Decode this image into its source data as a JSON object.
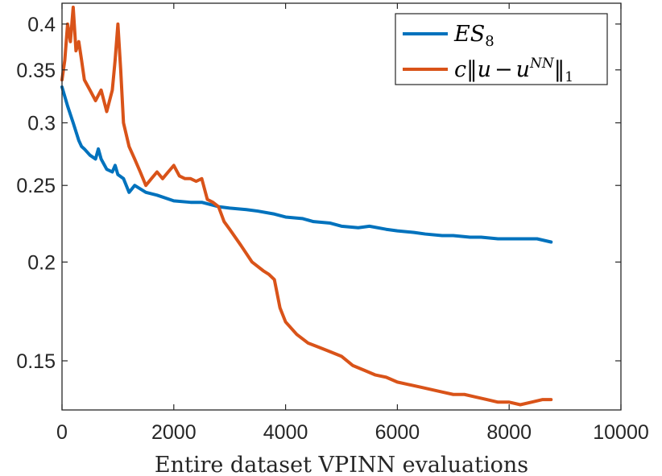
{
  "chart_data": {
    "type": "line",
    "title": "",
    "xlabel": "Entire dataset VPINN evaluations",
    "ylabel": "",
    "xlim": [
      0,
      10000
    ],
    "ylim": [
      0.13,
      0.425
    ],
    "yscale": "log",
    "grid": false,
    "legend_position": "top-right",
    "xticks": [
      0,
      2000,
      4000,
      6000,
      8000,
      10000
    ],
    "xtick_labels": [
      "0",
      "2000",
      "4000",
      "6000",
      "8000",
      "10000"
    ],
    "yticks": [
      0.15,
      0.2,
      0.25,
      0.3,
      0.35,
      0.4
    ],
    "ytick_labels": [
      "0.15",
      "0.2",
      "0.25",
      "0.3",
      "0.35",
      "0.4"
    ],
    "series": [
      {
        "name": "ES8",
        "legend_main": "ES",
        "legend_sub": "8",
        "color": "#0072BD",
        "x": [
          0,
          100,
          200,
          300,
          350,
          400,
          500,
          600,
          650,
          700,
          800,
          900,
          950,
          1000,
          1100,
          1200,
          1300,
          1500,
          1700,
          2000,
          2300,
          2500,
          2800,
          3000,
          3300,
          3500,
          3800,
          4000,
          4300,
          4500,
          4800,
          5000,
          5300,
          5500,
          5800,
          6000,
          6300,
          6500,
          6800,
          7000,
          7300,
          7500,
          7800,
          8000,
          8300,
          8500,
          8750
        ],
        "y": [
          0.333,
          0.315,
          0.3,
          0.285,
          0.28,
          0.278,
          0.273,
          0.27,
          0.278,
          0.27,
          0.262,
          0.26,
          0.265,
          0.258,
          0.255,
          0.245,
          0.25,
          0.245,
          0.243,
          0.239,
          0.238,
          0.238,
          0.235,
          0.234,
          0.233,
          0.232,
          0.23,
          0.228,
          0.227,
          0.225,
          0.224,
          0.222,
          0.221,
          0.222,
          0.22,
          0.219,
          0.218,
          0.217,
          0.216,
          0.216,
          0.215,
          0.215,
          0.214,
          0.214,
          0.214,
          0.214,
          0.212
        ]
      },
      {
        "name": "c||u - u^NN||1",
        "legend_c": "c",
        "legend_u": "u",
        "legend_minus": "−",
        "legend_u2": "u",
        "legend_sup": "NN",
        "legend_sub": "1",
        "color": "#D95319",
        "x": [
          0,
          50,
          100,
          150,
          200,
          250,
          300,
          350,
          400,
          500,
          600,
          700,
          800,
          900,
          950,
          1000,
          1050,
          1100,
          1200,
          1300,
          1400,
          1500,
          1600,
          1700,
          1800,
          1900,
          2000,
          2100,
          2200,
          2300,
          2400,
          2500,
          2600,
          2700,
          2800,
          2900,
          3000,
          3200,
          3400,
          3600,
          3700,
          3800,
          3900,
          4000,
          4200,
          4400,
          4600,
          4800,
          5000,
          5200,
          5400,
          5600,
          5800,
          6000,
          6200,
          6400,
          6600,
          6800,
          7000,
          7200,
          7400,
          7600,
          7800,
          8000,
          8200,
          8400,
          8600,
          8750
        ],
        "y": [
          0.34,
          0.36,
          0.4,
          0.38,
          0.42,
          0.37,
          0.38,
          0.36,
          0.34,
          0.33,
          0.32,
          0.33,
          0.31,
          0.33,
          0.36,
          0.4,
          0.35,
          0.3,
          0.28,
          0.27,
          0.26,
          0.25,
          0.255,
          0.26,
          0.255,
          0.26,
          0.265,
          0.257,
          0.255,
          0.255,
          0.253,
          0.255,
          0.24,
          0.238,
          0.235,
          0.225,
          0.22,
          0.21,
          0.2,
          0.195,
          0.193,
          0.19,
          0.175,
          0.168,
          0.162,
          0.158,
          0.156,
          0.154,
          0.152,
          0.148,
          0.146,
          0.144,
          0.143,
          0.141,
          0.14,
          0.139,
          0.138,
          0.137,
          0.136,
          0.136,
          0.135,
          0.134,
          0.133,
          0.133,
          0.132,
          0.133,
          0.134,
          0.134
        ]
      }
    ]
  }
}
